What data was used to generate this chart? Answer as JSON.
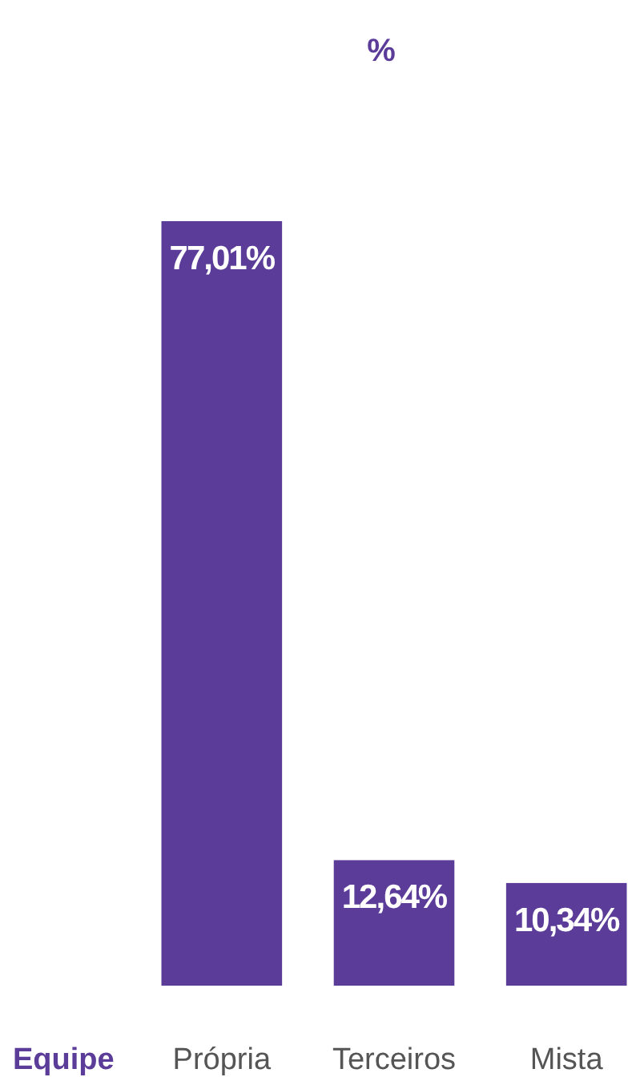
{
  "chart_data": {
    "type": "bar",
    "title": "%",
    "xlabel": "Equipe",
    "categories": [
      "Própria",
      "Terceiros",
      "Mista"
    ],
    "values": [
      77.01,
      12.64,
      10.34
    ],
    "color": "#5b3d99",
    "value_labels": [
      "77,01%",
      "12,64%",
      "10,34%"
    ]
  }
}
